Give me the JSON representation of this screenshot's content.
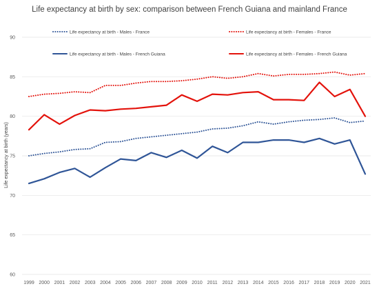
{
  "chart_data": {
    "type": "line",
    "title": "Life expectancy at birth by sex: comparison between French Guiana and mainland France",
    "xlabel": "",
    "ylabel": "Life expectancy at birth (years)",
    "ylim": [
      60,
      90
    ],
    "yticks": [
      "60",
      "65",
      "70",
      "75",
      "80",
      "85",
      "90"
    ],
    "x": [
      "1999",
      "2000",
      "2001",
      "2002",
      "2003",
      "2004",
      "2005",
      "2006",
      "2007",
      "2008",
      "2009",
      "2010",
      "2011",
      "2012",
      "2013",
      "2014",
      "2015",
      "2016",
      "2017",
      "2018",
      "2019",
      "2020",
      "2021"
    ],
    "grid": true,
    "legend_position": "top",
    "series": [
      {
        "name": "Life expectancy at birth - Males - France",
        "color": "#2f5597",
        "style": "dotted",
        "values": [
          75.0,
          75.3,
          75.5,
          75.8,
          75.9,
          76.7,
          76.8,
          77.2,
          77.4,
          77.6,
          77.8,
          78.0,
          78.4,
          78.5,
          78.8,
          79.3,
          79.0,
          79.3,
          79.5,
          79.6,
          79.8,
          79.2,
          79.4
        ]
      },
      {
        "name": "Life expectancy at birth - Females - France",
        "color": "#e3120b",
        "style": "dotted",
        "values": [
          82.5,
          82.8,
          82.9,
          83.1,
          83.0,
          83.9,
          83.9,
          84.2,
          84.4,
          84.4,
          84.5,
          84.7,
          85.0,
          84.8,
          85.0,
          85.4,
          85.1,
          85.3,
          85.3,
          85.4,
          85.6,
          85.2,
          85.4
        ]
      },
      {
        "name": "Life expectancy at birth - Males - French Guiana",
        "color": "#2f5597",
        "style": "solid",
        "values": [
          71.5,
          72.1,
          72.9,
          73.4,
          72.3,
          73.5,
          74.6,
          74.4,
          75.4,
          74.8,
          75.7,
          74.7,
          76.2,
          75.4,
          76.7,
          76.7,
          77.0,
          77.0,
          76.7,
          77.2,
          76.5,
          77.0,
          72.7
        ]
      },
      {
        "name": "Life expectancy at birth - Females - French Guiana",
        "color": "#e3120b",
        "style": "solid",
        "values": [
          78.3,
          80.2,
          79.0,
          80.1,
          80.8,
          80.7,
          80.9,
          81.0,
          81.2,
          81.4,
          82.7,
          81.9,
          82.8,
          82.7,
          83.0,
          83.1,
          82.1,
          82.1,
          82.0,
          84.3,
          82.5,
          83.4,
          80.0
        ]
      }
    ]
  }
}
